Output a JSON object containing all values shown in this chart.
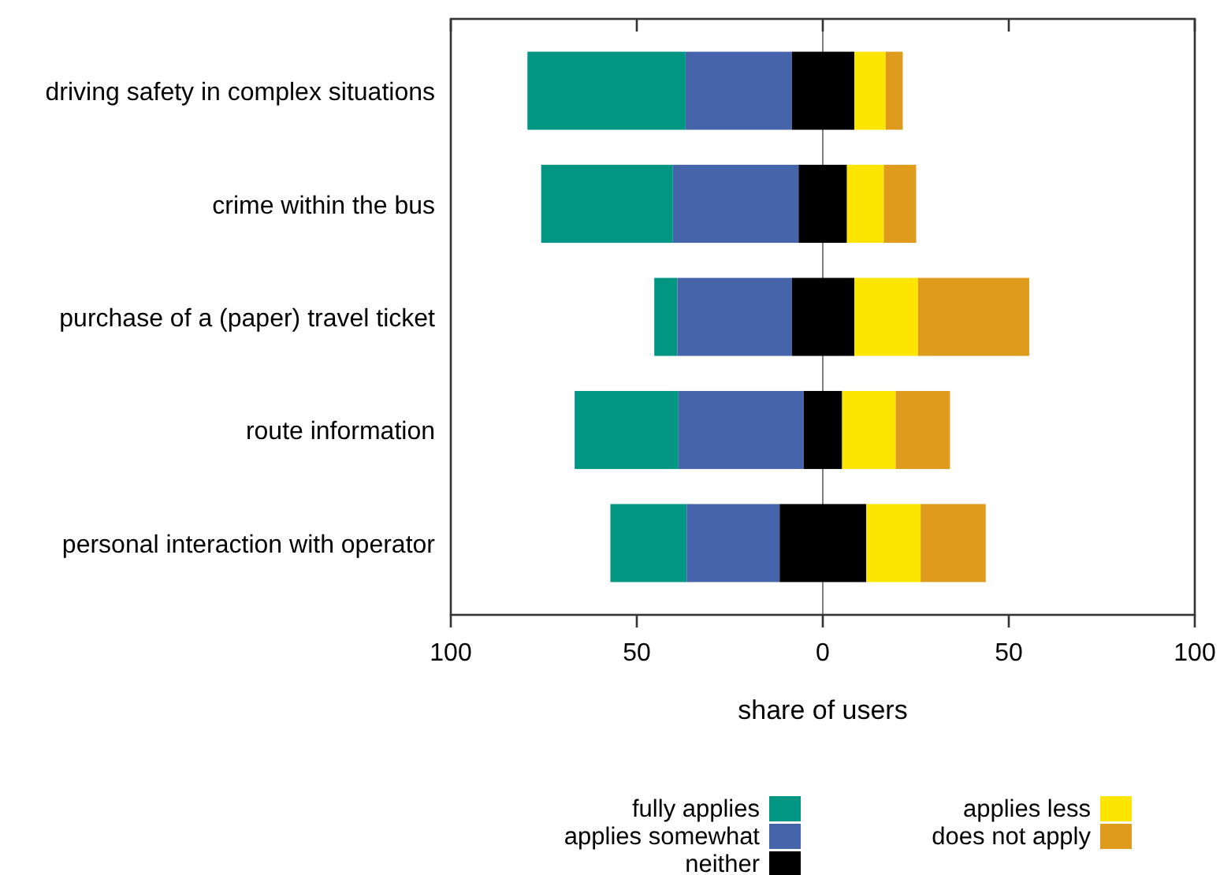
{
  "chart_data": {
    "type": "bar",
    "orientation": "horizontal",
    "xlabel": "share of users",
    "categories": [
      "driving safety in complex situations",
      "crime within the bus",
      "purchase of a (paper) travel ticket",
      "route information",
      "personal interaction with operator"
    ],
    "series": [
      {
        "name": "fully applies",
        "color": "#009682",
        "base": [
          -79.4,
          -75.7,
          -45.3,
          -66.7,
          -57.1
        ],
        "values": [
          42.5,
          35.4,
          6.2,
          27.9,
          20.5
        ]
      },
      {
        "name": "applies somewhat",
        "color": "#4664aa",
        "base": [
          -36.9,
          -40.3,
          -39.1,
          -38.8,
          -36.6
        ],
        "values": [
          28.6,
          33.8,
          30.8,
          33.7,
          25.0
        ]
      },
      {
        "name": "neither",
        "color": "#000000",
        "base": [
          -8.3,
          -6.5,
          -8.3,
          -5.1,
          -11.6
        ],
        "values": [
          16.8,
          13.0,
          16.8,
          10.3,
          23.3
        ]
      },
      {
        "name": "applies less",
        "color": "#fce500",
        "base": [
          8.5,
          6.5,
          8.5,
          5.2,
          11.7
        ],
        "values": [
          8.4,
          9.9,
          17.1,
          14.4,
          14.6
        ]
      },
      {
        "name": "does not apply",
        "color": "#df9b1b",
        "base": [
          16.9,
          16.4,
          25.6,
          19.6,
          26.3
        ],
        "values": [
          4.6,
          8.7,
          29.9,
          14.6,
          17.5
        ]
      }
    ],
    "xlim": [
      -100,
      100
    ],
    "xticks": [
      {
        "value": -100,
        "label": "100"
      },
      {
        "value": -50,
        "label": "50"
      },
      0,
      50,
      100
    ],
    "ref_lines": [
      {
        "axis": "x",
        "value": 0,
        "color": "#808080"
      }
    ],
    "grid": false,
    "legend": "bottom"
  }
}
